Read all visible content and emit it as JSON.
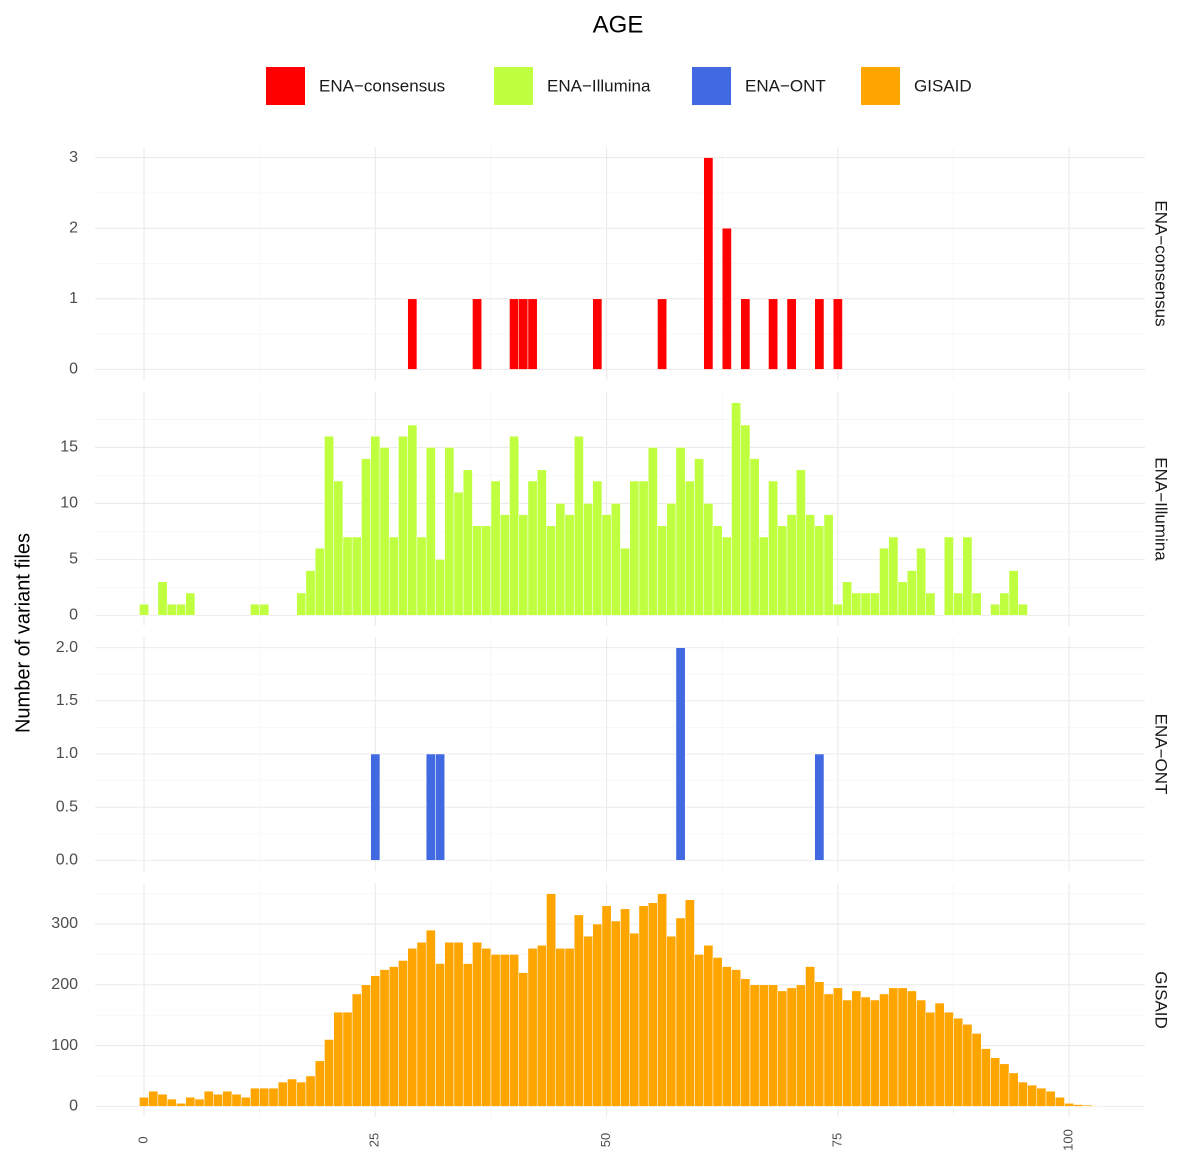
{
  "title": "AGE",
  "ylabel": "Number of variant files",
  "chart_data": [
    {
      "type": "bar",
      "name": "ENA−consensus",
      "color": "#ff0000",
      "binwidth": 1,
      "x": [
        29,
        36,
        40,
        41,
        42,
        49,
        56,
        61,
        63,
        65,
        68,
        70,
        73,
        75
      ],
      "values": [
        1,
        1,
        1,
        1,
        1,
        1,
        1,
        3,
        2,
        1,
        1,
        1,
        1,
        1
      ],
      "xlim": [
        -5.3,
        108.2
      ],
      "xticks": [
        0,
        25,
        50,
        75,
        100
      ],
      "xminorticks": [
        12.5,
        37.5,
        62.5,
        87.5
      ],
      "ylim": [
        -0.15,
        3.15
      ],
      "yticks": [
        0,
        1,
        2,
        3
      ],
      "yminorticks": [
        0.5,
        1.5,
        2.5
      ]
    },
    {
      "type": "bar",
      "name": "ENA−Illumina",
      "color": "#bfff3f",
      "binwidth": 1,
      "x": [
        0,
        1,
        2,
        3,
        4,
        5,
        6,
        7,
        8,
        9,
        10,
        11,
        12,
        13,
        14,
        15,
        16,
        17,
        18,
        19,
        20,
        21,
        22,
        23,
        24,
        25,
        26,
        27,
        28,
        29,
        30,
        31,
        32,
        33,
        34,
        35,
        36,
        37,
        38,
        39,
        40,
        41,
        42,
        43,
        44,
        45,
        46,
        47,
        48,
        49,
        50,
        51,
        52,
        53,
        54,
        55,
        56,
        57,
        58,
        59,
        60,
        61,
        62,
        63,
        64,
        65,
        66,
        67,
        68,
        69,
        70,
        71,
        72,
        73,
        74,
        75,
        76,
        77,
        78,
        79,
        80,
        81,
        82,
        83,
        84,
        85,
        86,
        87,
        88,
        89,
        90,
        91,
        92,
        93,
        94,
        95
      ],
      "values": [
        1,
        0,
        3,
        1,
        1,
        2,
        0,
        0,
        0,
        0,
        0,
        0,
        1,
        1,
        0,
        0,
        0,
        2,
        4,
        6,
        16,
        12,
        7,
        7,
        14,
        16,
        15,
        7,
        16,
        17,
        7,
        15,
        5,
        15,
        11,
        13,
        8,
        8,
        12,
        9,
        16,
        9,
        12,
        13,
        8,
        10,
        9,
        16,
        10,
        12,
        9,
        10,
        6,
        12,
        12,
        15,
        8,
        10,
        15,
        12,
        14,
        10,
        8,
        7,
        19,
        17,
        14,
        7,
        12,
        8,
        9,
        13,
        9,
        8,
        9,
        1,
        3,
        2,
        2,
        2,
        6,
        7,
        3,
        4,
        6,
        2,
        0,
        7,
        2,
        7,
        2,
        0,
        1,
        2,
        4,
        1
      ],
      "xlim": [
        -5.3,
        108.2
      ],
      "xticks": [
        0,
        25,
        50,
        75,
        100
      ],
      "xminorticks": [
        12.5,
        37.5,
        62.5,
        87.5
      ],
      "ylim": [
        -0.95,
        19.95
      ],
      "yticks": [
        0,
        5,
        10,
        15
      ],
      "yminorticks": [
        2.5,
        7.5,
        12.5,
        17.5
      ]
    },
    {
      "type": "bar",
      "name": "ENA−ONT",
      "color": "#4169e1",
      "binwidth": 1,
      "x": [
        25,
        31,
        32,
        58,
        73
      ],
      "values": [
        1,
        1,
        1,
        2,
        1
      ],
      "xlim": [
        -5.3,
        108.2
      ],
      "xticks": [
        0,
        25,
        50,
        75,
        100
      ],
      "xminorticks": [
        12.5,
        37.5,
        62.5,
        87.5
      ],
      "ylim": [
        -0.1,
        2.1
      ],
      "yticks": [
        {
          "value": 0,
          "label": "0.0"
        },
        {
          "value": 0.5,
          "label": "0.5"
        },
        {
          "value": 1,
          "label": "1.0"
        },
        {
          "value": 1.5,
          "label": "1.5"
        },
        {
          "value": 2,
          "label": "2.0"
        }
      ],
      "yminorticks": [
        0.25,
        0.75,
        1.25,
        1.75
      ]
    },
    {
      "type": "bar",
      "name": "GISAID",
      "color": "#ffa500",
      "binwidth": 1,
      "x": [
        0,
        1,
        2,
        3,
        4,
        5,
        6,
        7,
        8,
        9,
        10,
        11,
        12,
        13,
        14,
        15,
        16,
        17,
        18,
        19,
        20,
        21,
        22,
        23,
        24,
        25,
        26,
        27,
        28,
        29,
        30,
        31,
        32,
        33,
        34,
        35,
        36,
        37,
        38,
        39,
        40,
        41,
        42,
        43,
        44,
        45,
        46,
        47,
        48,
        49,
        50,
        51,
        52,
        53,
        54,
        55,
        56,
        57,
        58,
        59,
        60,
        61,
        62,
        63,
        64,
        65,
        66,
        67,
        68,
        69,
        70,
        71,
        72,
        73,
        74,
        75,
        76,
        77,
        78,
        79,
        80,
        81,
        82,
        83,
        84,
        85,
        86,
        87,
        88,
        89,
        90,
        91,
        92,
        93,
        94,
        95,
        96,
        97,
        98,
        99,
        100,
        101,
        102,
        103
      ],
      "values": [
        15,
        25,
        20,
        12,
        5,
        15,
        12,
        25,
        20,
        25,
        20,
        15,
        30,
        30,
        30,
        40,
        45,
        40,
        50,
        75,
        110,
        155,
        155,
        185,
        200,
        215,
        225,
        230,
        240,
        260,
        270,
        290,
        235,
        270,
        270,
        235,
        270,
        260,
        250,
        250,
        250,
        220,
        260,
        265,
        350,
        260,
        260,
        315,
        280,
        300,
        330,
        305,
        325,
        285,
        330,
        335,
        350,
        280,
        310,
        340,
        250,
        265,
        245,
        230,
        225,
        210,
        200,
        200,
        200,
        190,
        195,
        200,
        230,
        205,
        185,
        195,
        175,
        190,
        180,
        175,
        185,
        195,
        195,
        190,
        175,
        155,
        170,
        155,
        145,
        135,
        120,
        95,
        80,
        70,
        55,
        40,
        35,
        30,
        25,
        15,
        5,
        3,
        2,
        1
      ],
      "xlim": [
        -5.3,
        108.2
      ],
      "xticks": [
        0,
        25,
        50,
        75,
        100
      ],
      "xminorticks": [
        12.5,
        37.5,
        62.5,
        87.5
      ],
      "ylim": [
        -17.5,
        367.5
      ],
      "yticks": [
        0,
        100,
        200,
        300
      ],
      "yminorticks": [
        50,
        150,
        250,
        350
      ]
    }
  ]
}
